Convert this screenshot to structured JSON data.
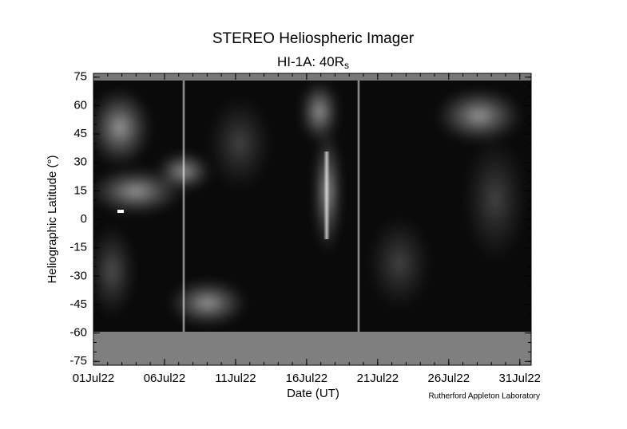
{
  "chart_data": {
    "type": "image",
    "title": "STEREO Heliospheric Imager",
    "subtitle": {
      "text": "HI-1A: 40R",
      "subscript": "s"
    },
    "xlabel": "Date (UT)",
    "ylabel": "Heliographic Latitude (°)",
    "credit": "Rutherford Appleton Laboratory",
    "xlim": [
      1,
      31.8
    ],
    "xticks": [
      {
        "value": 1,
        "label": "01Jul22"
      },
      {
        "value": 6,
        "label": "06Jul22"
      },
      {
        "value": 11,
        "label": "11Jul22"
      },
      {
        "value": 16,
        "label": "16Jul22"
      },
      {
        "value": 21,
        "label": "21Jul22"
      },
      {
        "value": 26,
        "label": "26Jul22"
      },
      {
        "value": 31,
        "label": "31Jul22"
      }
    ],
    "ylim": [
      -77,
      77
    ],
    "yticks": [
      -75,
      -60,
      -45,
      -30,
      -15,
      0,
      15,
      30,
      45,
      60,
      75
    ]
  }
}
